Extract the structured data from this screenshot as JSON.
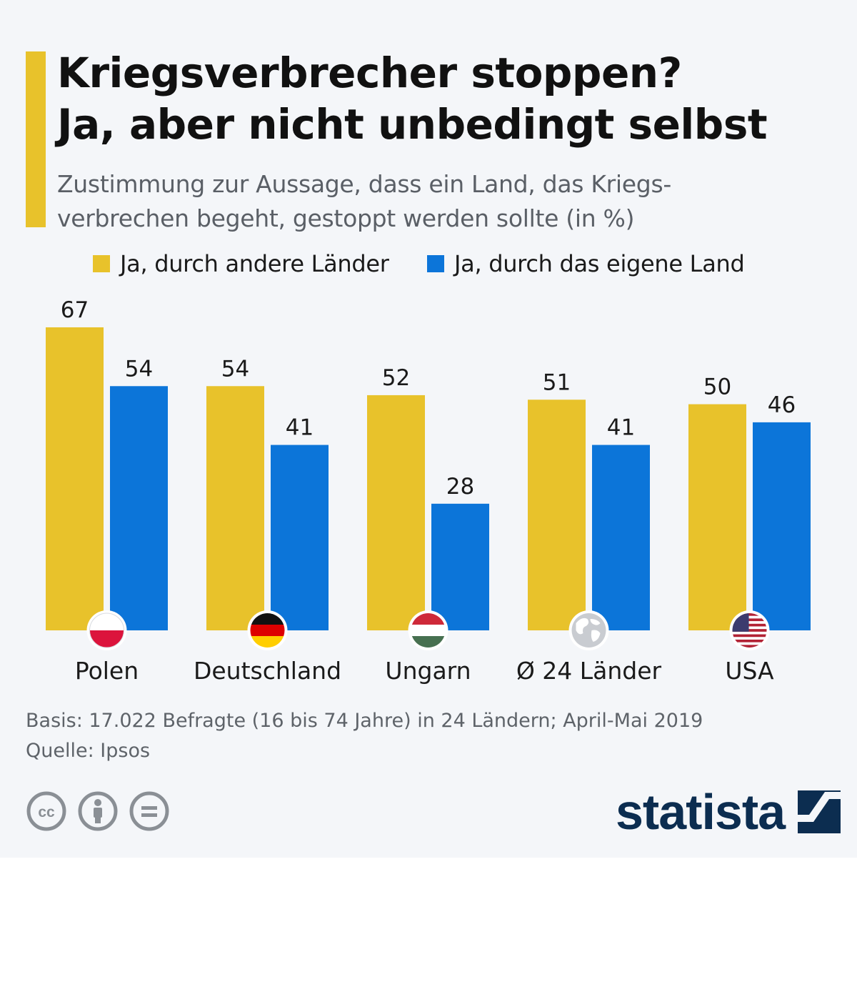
{
  "title_line1": "Kriegsverbrecher stoppen?",
  "title_line2": "Ja, aber nicht unbedingt selbst",
  "subtitle_line1": "Zustimmung zur Aussage, dass ein Land, das Kriegs-",
  "subtitle_line2": "verbrechen begeht, gestoppt werden sollte (in %)",
  "colors": {
    "accent": "#e8c22b",
    "series_other": "#e8c22b",
    "series_own": "#0c75d9",
    "logo": "#0c2d50"
  },
  "chart_data": {
    "type": "bar",
    "categories": [
      "Polen",
      "Deutschland",
      "Ungarn",
      "Ø 24 Länder",
      "USA"
    ],
    "category_icons": [
      "flag-poland-icon",
      "flag-germany-icon",
      "flag-hungary-icon",
      "globe-icon",
      "flag-usa-icon"
    ],
    "series": [
      {
        "name": "Ja, durch andere Länder",
        "values": [
          67,
          54,
          52,
          51,
          50
        ]
      },
      {
        "name": "Ja, durch das eigene Land",
        "values": [
          54,
          41,
          28,
          41,
          46
        ]
      }
    ],
    "ylim": [
      0,
      67
    ],
    "grid": false,
    "legend": "top",
    "data_labels": true
  },
  "footer": {
    "basis": "Basis: 17.022 Befragte (16 bis 74 Jahre) in 24 Ländern; April-Mai 2019",
    "source": "Quelle: Ipsos"
  },
  "license_icons": [
    "cc-icon",
    "attribution-icon",
    "no-derivatives-icon"
  ],
  "logo_text": "statista"
}
